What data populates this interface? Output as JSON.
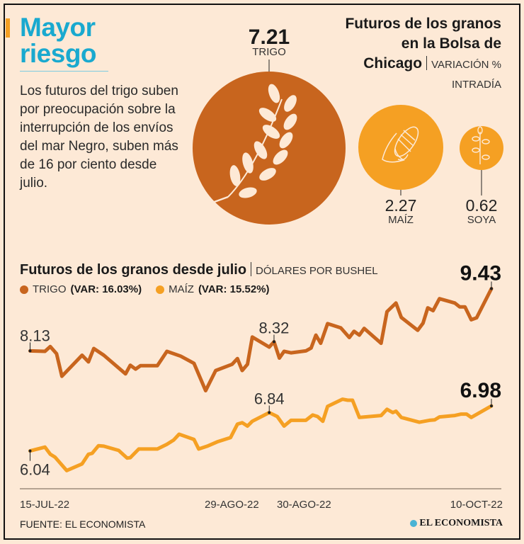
{
  "header": {
    "title_line1": "Mayor",
    "title_line2": "riesgo",
    "intro_text": "Los futuros del trigo suben por preocupación sobre la interrupción de los envíos del mar Negro, suben más de 16 por ciento desde julio."
  },
  "bubbles": {
    "title_line1": "Futuros de los granos",
    "title_line2": "en la Bolsa de",
    "title_line3": "Chicago",
    "unit_line1": "VARIACIÓN %",
    "unit_line2": "INTRADÍA",
    "items": [
      {
        "name": "TRIGO",
        "value": "7.21",
        "color": "#c8651e",
        "icon": "wheat-icon"
      },
      {
        "name": "MAÍZ",
        "value": "2.27",
        "color": "#f5a023",
        "icon": "corn-icon"
      },
      {
        "name": "SOYA",
        "value": "0.62",
        "color": "#f5a023",
        "icon": "soy-plant-icon"
      }
    ]
  },
  "chart_data": {
    "type": "line",
    "title": "Futuros de los granos desde julio",
    "unit": "DÓLARES POR BUSHEL",
    "xlabel": "",
    "ylabel": "Dólares por bushel",
    "x_units": "days since 15-JUL-22",
    "xlim": [
      0,
      87
    ],
    "ylim": [
      5.25,
      10.0
    ],
    "grid": false,
    "x_tick_labels": [
      {
        "day": 0,
        "label": "15-JUL-22"
      },
      {
        "day": 45,
        "label": "29-AGO-22"
      },
      {
        "day": 46,
        "label": "30-AGO-22"
      },
      {
        "day": 87,
        "label": "10-OCT-22"
      }
    ],
    "series": [
      {
        "name": "TRIGO",
        "legend_var": "(VAR: 16.03%)",
        "color": "#c8651e",
        "points": [
          [
            0,
            8.13
          ],
          [
            2.8,
            8.12
          ],
          [
            3.8,
            8.22
          ],
          [
            5.0,
            8.07
          ],
          [
            6.0,
            7.6
          ],
          [
            9.8,
            8.04
          ],
          [
            11.0,
            7.9
          ],
          [
            12.0,
            8.18
          ],
          [
            13.9,
            8.04
          ],
          [
            18.0,
            7.65
          ],
          [
            18.9,
            7.83
          ],
          [
            19.9,
            7.75
          ],
          [
            20.8,
            7.82
          ],
          [
            24.0,
            7.82
          ],
          [
            25.8,
            8.12
          ],
          [
            28.4,
            8.02
          ],
          [
            30.9,
            7.87
          ],
          [
            33.1,
            7.3
          ],
          [
            35.0,
            7.72
          ],
          [
            38.1,
            7.85
          ],
          [
            39.1,
            7.97
          ],
          [
            40.0,
            7.72
          ],
          [
            41.0,
            7.85
          ],
          [
            41.9,
            8.42
          ],
          [
            45.1,
            8.21
          ],
          [
            46.0,
            8.32
          ],
          [
            47.0,
            7.98
          ],
          [
            47.9,
            8.12
          ],
          [
            49.2,
            8.09
          ],
          [
            52.0,
            8.13
          ],
          [
            53.0,
            8.19
          ],
          [
            53.9,
            8.46
          ],
          [
            54.8,
            8.29
          ],
          [
            56.1,
            8.7
          ],
          [
            58.6,
            8.61
          ],
          [
            60.2,
            8.41
          ],
          [
            61.1,
            8.54
          ],
          [
            62.1,
            8.46
          ],
          [
            63.0,
            8.6
          ],
          [
            66.2,
            8.29
          ],
          [
            67.3,
            8.95
          ],
          [
            69.0,
            9.13
          ],
          [
            70.0,
            8.83
          ],
          [
            73.1,
            8.56
          ],
          [
            74.1,
            8.71
          ],
          [
            75.0,
            9.03
          ],
          [
            76.0,
            8.97
          ],
          [
            77.2,
            9.22
          ],
          [
            80.1,
            9.13
          ],
          [
            81.0,
            9.05
          ],
          [
            82.0,
            9.05
          ],
          [
            83.2,
            8.78
          ],
          [
            84.2,
            8.82
          ],
          [
            87,
            9.43
          ]
        ]
      },
      {
        "name": "MAÍZ",
        "legend_var": "(VAR: 15.52%)",
        "color": "#f5a023",
        "points": [
          [
            0,
            6.04
          ],
          [
            2.8,
            6.12
          ],
          [
            3.8,
            5.97
          ],
          [
            4.7,
            5.91
          ],
          [
            6.9,
            5.63
          ],
          [
            9.8,
            5.77
          ],
          [
            11.0,
            5.97
          ],
          [
            11.7,
            5.99
          ],
          [
            12.9,
            6.15
          ],
          [
            13.9,
            6.14
          ],
          [
            16.7,
            6.05
          ],
          [
            18.3,
            5.89
          ],
          [
            18.9,
            5.9
          ],
          [
            20.5,
            6.08
          ],
          [
            24.0,
            6.08
          ],
          [
            25.8,
            6.18
          ],
          [
            27.1,
            6.27
          ],
          [
            28.1,
            6.39
          ],
          [
            30.9,
            6.28
          ],
          [
            31.8,
            6.08
          ],
          [
            33.4,
            6.14
          ],
          [
            35.3,
            6.23
          ],
          [
            37.8,
            6.32
          ],
          [
            39.1,
            6.6
          ],
          [
            40.0,
            6.63
          ],
          [
            41.0,
            6.56
          ],
          [
            41.9,
            6.66
          ],
          [
            45.1,
            6.84
          ],
          [
            46.6,
            6.76
          ],
          [
            47.9,
            6.56
          ],
          [
            49.2,
            6.68
          ],
          [
            52.0,
            6.68
          ],
          [
            53.3,
            6.79
          ],
          [
            54.2,
            6.76
          ],
          [
            55.2,
            6.66
          ],
          [
            56.1,
            6.97
          ],
          [
            58.9,
            7.12
          ],
          [
            59.9,
            7.1
          ],
          [
            60.8,
            7.1
          ],
          [
            62.1,
            6.74
          ],
          [
            66.2,
            6.78
          ],
          [
            67.3,
            6.91
          ],
          [
            68.4,
            6.84
          ],
          [
            69.0,
            6.87
          ],
          [
            70.0,
            6.74
          ],
          [
            73.4,
            6.64
          ],
          [
            74.4,
            6.66
          ],
          [
            75.3,
            6.68
          ],
          [
            76.3,
            6.69
          ],
          [
            77.2,
            6.75
          ],
          [
            80.1,
            6.78
          ],
          [
            81.3,
            6.81
          ],
          [
            82.3,
            6.81
          ],
          [
            83.2,
            6.74
          ],
          [
            87,
            6.98
          ]
        ]
      }
    ],
    "annotations": [
      {
        "series": "TRIGO",
        "day": 0,
        "value": 8.13,
        "label": "8.13",
        "placement": "above-left",
        "bold": false
      },
      {
        "series": "TRIGO",
        "day": 46,
        "value": 8.32,
        "label": "8.32",
        "placement": "above",
        "bold": false
      },
      {
        "series": "TRIGO",
        "day": 87,
        "value": 9.43,
        "label": "9.43",
        "placement": "above-right",
        "bold": true
      },
      {
        "series": "MAÍZ",
        "day": 0,
        "value": 6.04,
        "label": "6.04",
        "placement": "below-left",
        "bold": false
      },
      {
        "series": "MAÍZ",
        "day": 45.1,
        "value": 6.84,
        "label": "6.84",
        "placement": "above",
        "bold": false
      },
      {
        "series": "MAÍZ",
        "day": 87,
        "value": 6.98,
        "label": "6.98",
        "placement": "above-right",
        "bold": true
      }
    ]
  },
  "footer": {
    "source": "FUENTE: EL ECONOMISTA",
    "logo_text": "EL ECONOMISTA"
  }
}
